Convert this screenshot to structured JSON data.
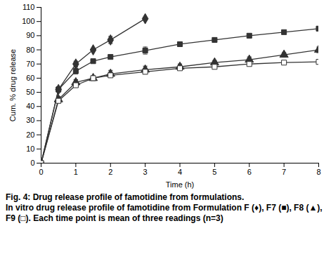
{
  "chart_data": {
    "type": "line",
    "title": "Fig. 4: Drug release profile of famotidine from formulations.",
    "caption": "In vitro drug release profile of famotidine from Formulation F (♦), F7 (■), F8 (▲), F9 (□). Each time point is mean of three readings (n=3)",
    "x_label": "Time (h)",
    "y_label": "Cum. % drug release",
    "xlim": [
      0,
      8
    ],
    "xticks": [
      0,
      1,
      2,
      3,
      4,
      5,
      6,
      7,
      8
    ],
    "ylim": [
      0,
      110
    ],
    "yticks": [
      0,
      10,
      20,
      30,
      40,
      50,
      60,
      70,
      80,
      90,
      100,
      110
    ],
    "grid": false,
    "series": [
      {
        "name": "F",
        "color": "#333333",
        "marker": "diamond",
        "x": [
          0,
          0.5,
          1,
          1.5,
          2,
          3
        ],
        "values": [
          0,
          52,
          70,
          80,
          87,
          102
        ],
        "errors": [
          0,
          2,
          2,
          1,
          2.5,
          0
        ]
      },
      {
        "name": "F7",
        "color": "#333333",
        "marker": "square",
        "x": [
          0,
          0.5,
          1,
          1.5,
          2,
          3,
          4,
          5,
          6,
          7,
          8
        ],
        "values": [
          0,
          52,
          65,
          72,
          75,
          79.5,
          84,
          87,
          90,
          92.5,
          95
        ],
        "errors": [
          0,
          1.5,
          2,
          1,
          1,
          2.5,
          1,
          1.5,
          1,
          1,
          1.5
        ]
      },
      {
        "name": "F8",
        "color": "#333333",
        "marker": "triangle",
        "x": [
          0,
          0.5,
          1,
          1.5,
          2,
          3,
          4,
          5,
          6,
          7,
          8
        ],
        "values": [
          0,
          45,
          57,
          60,
          63,
          66,
          68,
          71,
          73,
          76.5,
          80
        ],
        "errors": [
          0,
          2,
          2,
          1.5,
          2.5,
          2.5,
          2,
          1.5,
          2,
          1.5,
          2
        ]
      },
      {
        "name": "F9",
        "color": "#333333",
        "marker": "square-open",
        "x": [
          0,
          0.5,
          1,
          1.5,
          2,
          3,
          4,
          5,
          6,
          7,
          8
        ],
        "values": [
          0,
          44,
          55,
          60,
          62,
          64.5,
          67,
          68,
          70,
          71,
          71.5
        ],
        "errors": [
          0,
          1.5,
          1.5,
          1.5,
          1.5,
          1.5,
          1,
          1,
          1,
          1,
          1.5
        ]
      }
    ]
  }
}
